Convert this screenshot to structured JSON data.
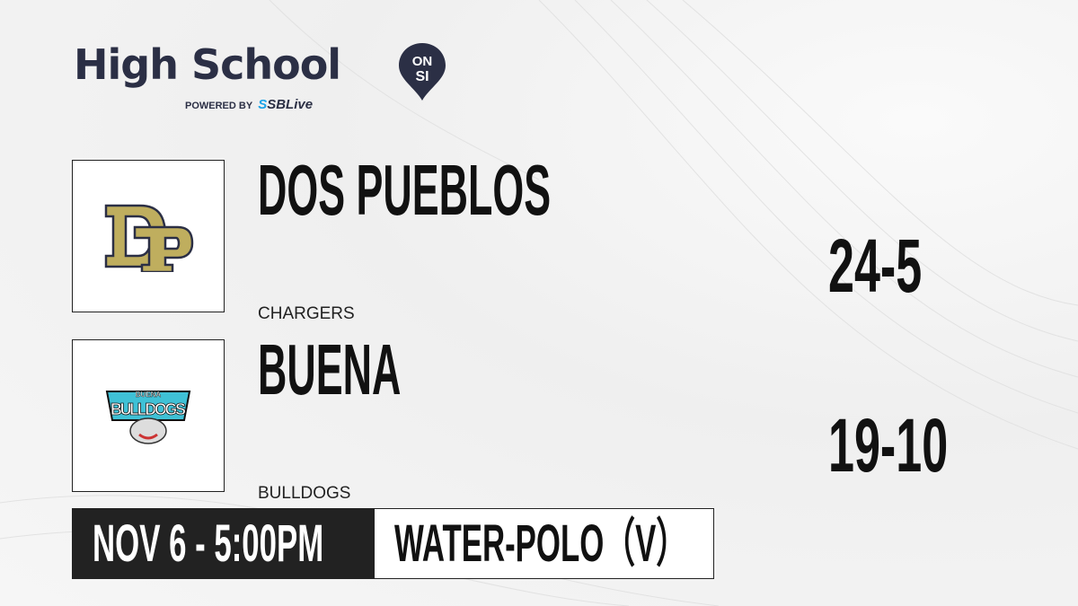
{
  "brand": {
    "title": "High School",
    "badge_top": "ON",
    "badge_bottom": "SI",
    "powered_by": "POWERED BY",
    "partner": "SBLive",
    "colors": {
      "navy": "#2b2f45",
      "blue": "#1aa3e8"
    }
  },
  "teams": [
    {
      "name": "DOS PUEBLOS",
      "mascot": "CHARGERS",
      "record": "24-5",
      "logo_text": "DP",
      "color": "#bfae5e"
    },
    {
      "name": "BUENA",
      "mascot": "BULLDOGS",
      "record": "19-10",
      "logo_text": "BUENA BULLDOGS",
      "color": "#3fc1d6"
    }
  ],
  "game": {
    "datetime": "NOV 6 - 5:00PM",
    "sport": "WATER-POLO（V）"
  }
}
